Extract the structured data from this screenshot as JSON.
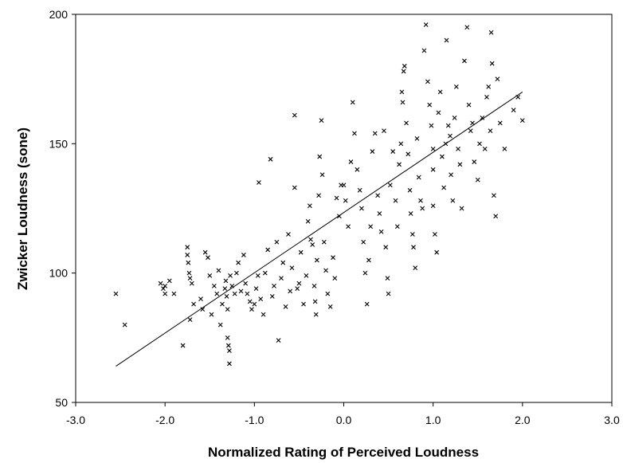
{
  "chart_data": {
    "type": "scatter",
    "xlabel": "Normalized Rating of Perceived Loudness",
    "ylabel": "Zwicker Loudness (sone)",
    "xlim": [
      -3.0,
      3.0
    ],
    "ylim": [
      50,
      200
    ],
    "x_ticks": [
      -3.0,
      -2.0,
      -1.0,
      0.0,
      1.0,
      2.0,
      3.0
    ],
    "x_tick_labels": [
      "-3.0",
      "-2.0",
      "-1.0",
      "0.0",
      "1.0",
      "2.0",
      "3.0"
    ],
    "y_ticks": [
      50,
      100,
      150,
      200
    ],
    "y_tick_labels": [
      "50",
      "100",
      "150",
      "200"
    ],
    "grid": false,
    "legend": "none",
    "marker": "x",
    "colors": {
      "points": "#000000",
      "line": "#000000",
      "axes": "#000000"
    },
    "fit_line": {
      "x": [
        -2.55,
        2.0
      ],
      "y": [
        64,
        170
      ]
    },
    "points": [
      [
        -2.55,
        92
      ],
      [
        -2.45,
        80
      ],
      [
        -2.05,
        96
      ],
      [
        -2.02,
        94
      ],
      [
        -2.0,
        92
      ],
      [
        -2.0,
        95
      ],
      [
        -1.95,
        97
      ],
      [
        -1.9,
        92
      ],
      [
        -1.8,
        72
      ],
      [
        -1.75,
        110
      ],
      [
        -1.75,
        107
      ],
      [
        -1.74,
        104
      ],
      [
        -1.73,
        100
      ],
      [
        -1.72,
        98
      ],
      [
        -1.7,
        96
      ],
      [
        -1.68,
        88
      ],
      [
        -1.72,
        82
      ],
      [
        -1.6,
        90
      ],
      [
        -1.58,
        86
      ],
      [
        -1.55,
        108
      ],
      [
        -1.52,
        106
      ],
      [
        -1.5,
        99
      ],
      [
        -1.48,
        84
      ],
      [
        -1.45,
        95
      ],
      [
        -1.42,
        92
      ],
      [
        -1.4,
        101
      ],
      [
        -1.38,
        80
      ],
      [
        -1.36,
        88
      ],
      [
        -1.33,
        94
      ],
      [
        -1.32,
        97
      ],
      [
        -1.31,
        91
      ],
      [
        -1.3,
        86
      ],
      [
        -1.3,
        75
      ],
      [
        -1.29,
        72
      ],
      [
        -1.28,
        70
      ],
      [
        -1.28,
        65
      ],
      [
        -1.27,
        99
      ],
      [
        -1.25,
        95
      ],
      [
        -1.22,
        92
      ],
      [
        -1.2,
        100
      ],
      [
        -1.18,
        104
      ],
      [
        -1.15,
        93
      ],
      [
        -1.12,
        107
      ],
      [
        -1.1,
        96
      ],
      [
        -1.08,
        92
      ],
      [
        -1.05,
        89
      ],
      [
        -1.03,
        86
      ],
      [
        -1.0,
        88
      ],
      [
        -0.98,
        94
      ],
      [
        -0.96,
        99
      ],
      [
        -0.95,
        135
      ],
      [
        -0.93,
        90
      ],
      [
        -0.9,
        84
      ],
      [
        -0.88,
        100
      ],
      [
        -0.85,
        109
      ],
      [
        -0.82,
        144
      ],
      [
        -0.8,
        91
      ],
      [
        -0.78,
        95
      ],
      [
        -0.75,
        112
      ],
      [
        -0.73,
        74
      ],
      [
        -0.7,
        98
      ],
      [
        -0.68,
        104
      ],
      [
        -0.65,
        87
      ],
      [
        -0.62,
        115
      ],
      [
        -0.6,
        93
      ],
      [
        -0.58,
        102
      ],
      [
        -0.55,
        133
      ],
      [
        -0.55,
        161
      ],
      [
        -0.52,
        94
      ],
      [
        -0.5,
        96
      ],
      [
        -0.48,
        108
      ],
      [
        -0.45,
        88
      ],
      [
        -0.42,
        99
      ],
      [
        -0.4,
        120
      ],
      [
        -0.38,
        126
      ],
      [
        -0.37,
        113
      ],
      [
        -0.35,
        111
      ],
      [
        -0.33,
        95
      ],
      [
        -0.32,
        89
      ],
      [
        -0.31,
        84
      ],
      [
        -0.3,
        105
      ],
      [
        -0.28,
        130
      ],
      [
        -0.27,
        145
      ],
      [
        -0.25,
        159
      ],
      [
        -0.24,
        138
      ],
      [
        -0.22,
        112
      ],
      [
        -0.2,
        101
      ],
      [
        -0.18,
        92
      ],
      [
        -0.15,
        87
      ],
      [
        -0.12,
        106
      ],
      [
        -0.1,
        98
      ],
      [
        -0.08,
        129
      ],
      [
        -0.05,
        122
      ],
      [
        -0.03,
        134
      ],
      [
        0.0,
        134
      ],
      [
        0.02,
        128
      ],
      [
        0.05,
        118
      ],
      [
        0.08,
        143
      ],
      [
        0.1,
        166
      ],
      [
        0.12,
        154
      ],
      [
        0.15,
        140
      ],
      [
        0.18,
        132
      ],
      [
        0.2,
        125
      ],
      [
        0.22,
        112
      ],
      [
        0.24,
        100
      ],
      [
        0.26,
        88
      ],
      [
        0.28,
        105
      ],
      [
        0.3,
        118
      ],
      [
        0.32,
        147
      ],
      [
        0.35,
        154
      ],
      [
        0.38,
        130
      ],
      [
        0.4,
        123
      ],
      [
        0.42,
        116
      ],
      [
        0.45,
        155
      ],
      [
        0.47,
        110
      ],
      [
        0.49,
        98
      ],
      [
        0.5,
        92
      ],
      [
        0.52,
        134
      ],
      [
        0.55,
        147
      ],
      [
        0.58,
        128
      ],
      [
        0.6,
        118
      ],
      [
        0.62,
        142
      ],
      [
        0.64,
        150
      ],
      [
        0.65,
        170
      ],
      [
        0.66,
        166
      ],
      [
        0.67,
        178
      ],
      [
        0.68,
        180
      ],
      [
        0.7,
        158
      ],
      [
        0.72,
        146
      ],
      [
        0.74,
        132
      ],
      [
        0.75,
        123
      ],
      [
        0.77,
        115
      ],
      [
        0.78,
        110
      ],
      [
        0.8,
        102
      ],
      [
        0.82,
        152
      ],
      [
        0.84,
        137
      ],
      [
        0.86,
        128
      ],
      [
        0.88,
        125
      ],
      [
        0.9,
        186
      ],
      [
        0.92,
        196
      ],
      [
        0.94,
        174
      ],
      [
        0.96,
        165
      ],
      [
        0.98,
        157
      ],
      [
        1.0,
        148
      ],
      [
        1.0,
        140
      ],
      [
        1.0,
        126
      ],
      [
        1.02,
        115
      ],
      [
        1.04,
        108
      ],
      [
        1.06,
        162
      ],
      [
        1.08,
        170
      ],
      [
        1.1,
        145
      ],
      [
        1.12,
        133
      ],
      [
        1.14,
        150
      ],
      [
        1.15,
        190
      ],
      [
        1.17,
        157
      ],
      [
        1.19,
        153
      ],
      [
        1.2,
        138
      ],
      [
        1.22,
        128
      ],
      [
        1.24,
        160
      ],
      [
        1.26,
        172
      ],
      [
        1.28,
        148
      ],
      [
        1.3,
        142
      ],
      [
        1.32,
        125
      ],
      [
        1.35,
        182
      ],
      [
        1.38,
        195
      ],
      [
        1.4,
        165
      ],
      [
        1.42,
        155
      ],
      [
        1.44,
        158
      ],
      [
        1.46,
        143
      ],
      [
        1.5,
        136
      ],
      [
        1.52,
        150
      ],
      [
        1.55,
        160
      ],
      [
        1.58,
        148
      ],
      [
        1.6,
        168
      ],
      [
        1.62,
        172
      ],
      [
        1.64,
        155
      ],
      [
        1.65,
        193
      ],
      [
        1.66,
        181
      ],
      [
        1.68,
        130
      ],
      [
        1.7,
        122
      ],
      [
        1.72,
        175
      ],
      [
        1.75,
        158
      ],
      [
        1.8,
        148
      ],
      [
        1.9,
        163
      ],
      [
        1.95,
        168
      ],
      [
        2.0,
        159
      ]
    ]
  }
}
